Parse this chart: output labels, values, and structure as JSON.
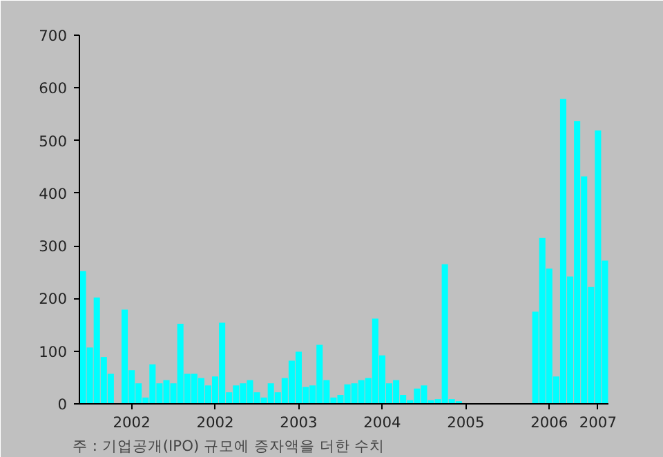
{
  "chart_data": {
    "type": "bar",
    "categories": [
      null,
      null,
      null,
      null,
      null,
      null,
      null,
      "2002",
      null,
      null,
      null,
      null,
      null,
      null,
      null,
      null,
      null,
      null,
      null,
      "2002",
      null,
      null,
      null,
      null,
      null,
      null,
      null,
      null,
      null,
      null,
      null,
      "2003",
      null,
      null,
      null,
      null,
      null,
      null,
      null,
      null,
      null,
      null,
      null,
      "2004",
      null,
      null,
      null,
      null,
      null,
      null,
      null,
      null,
      null,
      null,
      null,
      "2005",
      null,
      null,
      null,
      null,
      null,
      null,
      null,
      null,
      null,
      null,
      null,
      "2006",
      null,
      null,
      null,
      null,
      null,
      null,
      "2007",
      null
    ],
    "values": [
      252,
      107,
      202,
      89,
      57,
      0,
      179,
      64,
      39,
      12,
      75,
      39,
      45,
      39,
      152,
      57,
      57,
      49,
      35,
      52,
      154,
      22,
      35,
      39,
      45,
      22,
      12,
      39,
      22,
      49,
      82,
      99,
      32,
      35,
      112,
      45,
      12,
      17,
      37,
      39,
      45,
      49,
      162,
      92,
      39,
      45,
      17,
      7,
      29,
      35,
      7,
      9,
      265,
      9,
      5,
      0,
      0,
      0,
      0,
      0,
      0,
      0,
      0,
      0,
      0,
      175,
      315,
      257,
      52,
      579,
      242,
      537,
      432,
      222,
      519,
      272
    ],
    "color": "#00ffff",
    "ylim": [
      0,
      700
    ],
    "yticks": [
      0,
      100,
      200,
      300,
      400,
      500,
      600,
      700
    ],
    "grid": false,
    "annotations": [
      "주 : 기업공개(IPO) 규모에 증자액을 더한 수치"
    ]
  }
}
